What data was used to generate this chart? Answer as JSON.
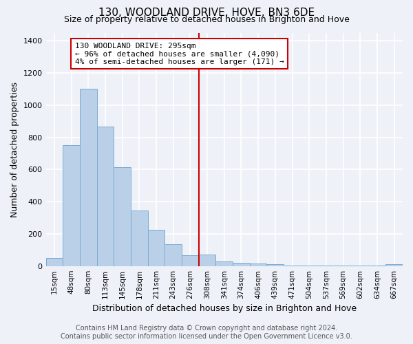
{
  "title": "130, WOODLAND DRIVE, HOVE, BN3 6DE",
  "subtitle": "Size of property relative to detached houses in Brighton and Hove",
  "xlabel": "Distribution of detached houses by size in Brighton and Hove",
  "ylabel": "Number of detached properties",
  "footer_line1": "Contains HM Land Registry data © Crown copyright and database right 2024.",
  "footer_line2": "Contains public sector information licensed under the Open Government Licence v3.0.",
  "bar_labels": [
    "15sqm",
    "48sqm",
    "80sqm",
    "113sqm",
    "145sqm",
    "178sqm",
    "211sqm",
    "243sqm",
    "276sqm",
    "308sqm",
    "341sqm",
    "374sqm",
    "406sqm",
    "439sqm",
    "471sqm",
    "504sqm",
    "537sqm",
    "569sqm",
    "602sqm",
    "634sqm",
    "667sqm"
  ],
  "bar_values": [
    50,
    750,
    1100,
    865,
    615,
    345,
    225,
    135,
    65,
    70,
    30,
    20,
    15,
    10,
    5,
    5,
    5,
    5,
    5,
    5,
    10
  ],
  "bar_color": "#bad0e8",
  "bar_edgecolor": "#7aaad0",
  "annotation_text": "130 WOODLAND DRIVE: 295sqm\n← 96% of detached houses are smaller (4,090)\n4% of semi-detached houses are larger (171) →",
  "vline_x_index": 8.5,
  "vline_color": "#cc0000",
  "annotation_box_edgecolor": "#cc0000",
  "annotation_fontsize": 8,
  "ylim": [
    0,
    1450
  ],
  "yticks": [
    0,
    200,
    400,
    600,
    800,
    1000,
    1200,
    1400
  ],
  "background_color": "#eef2f8",
  "grid_color": "#ffffff",
  "title_fontsize": 11,
  "subtitle_fontsize": 9,
  "xlabel_fontsize": 9,
  "ylabel_fontsize": 9,
  "tick_labelsize": 8,
  "footer_fontsize": 7
}
